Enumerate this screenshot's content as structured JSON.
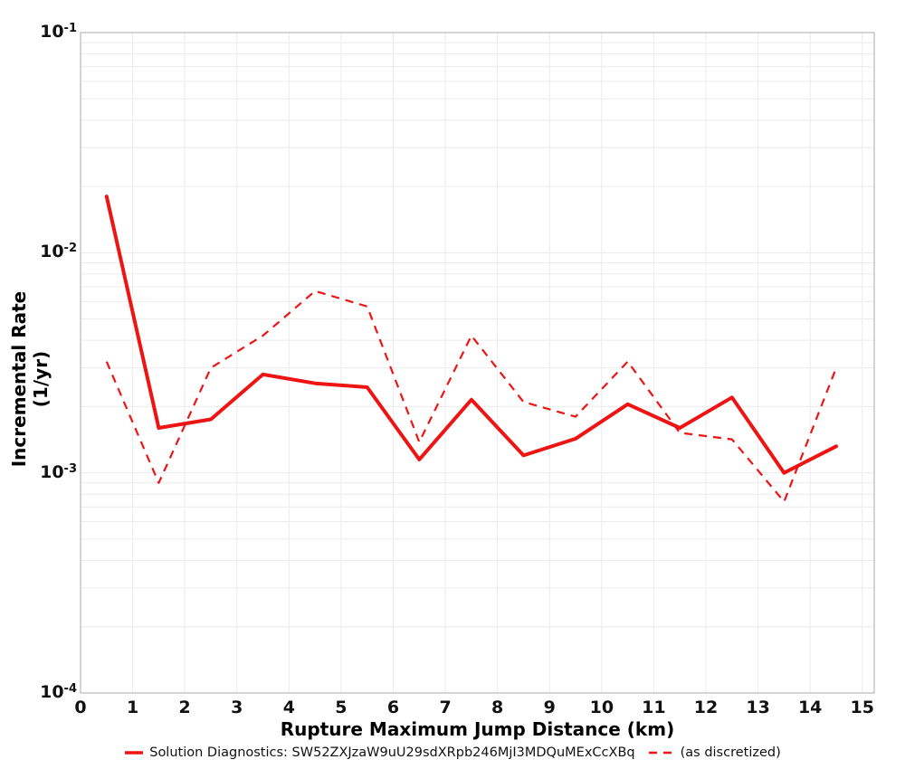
{
  "chart_data": {
    "type": "line",
    "x": [
      0.5,
      1.5,
      2.5,
      3.5,
      4.5,
      5.5,
      6.5,
      7.5,
      8.5,
      9.5,
      10.5,
      11.5,
      12.5,
      13.5,
      14.5
    ],
    "series": [
      {
        "name": "Solution Diagnostics: SW52ZXJzaW9uU29sdXRpb246MjI3MDQuMExCcXBq",
        "style": "solid",
        "values": [
          0.018,
          0.0016,
          0.00175,
          0.0028,
          0.00255,
          0.00245,
          0.00115,
          0.00215,
          0.0012,
          0.00143,
          0.00205,
          0.0016,
          0.0022,
          0.001,
          0.00132
        ]
      },
      {
        "name": "(as discretized)",
        "style": "dashed",
        "values": [
          0.0032,
          0.0009,
          0.003,
          0.0042,
          0.0067,
          0.0057,
          0.00138,
          0.0042,
          0.0021,
          0.0018,
          0.0032,
          0.00152,
          0.00142,
          0.00074,
          0.003
        ]
      }
    ],
    "title": "",
    "xlabel": "Rupture Maximum Jump Distance (km)",
    "ylabel": "Incremental Rate (1/yr)",
    "xlim": [
      0,
      15.23
    ],
    "ylim": [
      0.0001,
      0.1
    ],
    "yscale": "log",
    "grid": true,
    "legend_position": "bottom-center",
    "x_ticks": [
      "0",
      "1",
      "2",
      "3",
      "4",
      "5",
      "6",
      "7",
      "8",
      "9",
      "10",
      "11",
      "12",
      "13",
      "14",
      "15"
    ],
    "y_ticks": [
      {
        "base": "10",
        "exp": "-1"
      },
      {
        "base": "10",
        "exp": "-2"
      },
      {
        "base": "10",
        "exp": "-3"
      },
      {
        "base": "10",
        "exp": "-4"
      }
    ],
    "colors": {
      "series_red": "#ee1414",
      "gridline": "#ececec",
      "plot_border": "#ababab",
      "background": "#ffffff",
      "text": "#000000"
    }
  }
}
